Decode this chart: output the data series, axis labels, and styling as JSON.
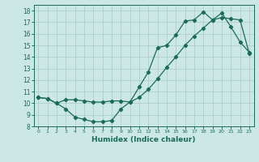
{
  "xlabel": "Humidex (Indice chaleur)",
  "xlim": [
    -0.5,
    23.5
  ],
  "ylim": [
    8,
    18.5
  ],
  "yticks": [
    8,
    9,
    10,
    11,
    12,
    13,
    14,
    15,
    16,
    17,
    18
  ],
  "xticks": [
    0,
    1,
    2,
    3,
    4,
    5,
    6,
    7,
    8,
    9,
    10,
    11,
    12,
    13,
    14,
    15,
    16,
    17,
    18,
    19,
    20,
    21,
    22,
    23
  ],
  "bg_color": "#cce8e4",
  "grid_color": "#aacfca",
  "line_color": "#1a6b5a",
  "line1_x": [
    0,
    1,
    2,
    3,
    4,
    5,
    6,
    7,
    8,
    9,
    10,
    11,
    12,
    13,
    14,
    15,
    16,
    17,
    18,
    19,
    20,
    21,
    22,
    23
  ],
  "line1_y": [
    10.5,
    10.4,
    10.0,
    9.5,
    8.8,
    8.6,
    8.4,
    8.4,
    8.5,
    9.5,
    10.1,
    11.4,
    12.7,
    14.8,
    15.0,
    15.9,
    17.1,
    17.2,
    17.9,
    17.2,
    17.8,
    16.6,
    15.3,
    14.4
  ],
  "line2_x": [
    0,
    1,
    2,
    3,
    4,
    5,
    6,
    7,
    8,
    9,
    10,
    11,
    12,
    13,
    14,
    15,
    16,
    17,
    18,
    19,
    20,
    21,
    22,
    23
  ],
  "line2_y": [
    10.5,
    10.4,
    10.0,
    10.3,
    10.3,
    10.2,
    10.1,
    10.1,
    10.2,
    10.2,
    10.1,
    10.5,
    11.2,
    12.1,
    13.1,
    14.0,
    15.0,
    15.8,
    16.5,
    17.2,
    17.4,
    17.3,
    17.2,
    14.3
  ]
}
